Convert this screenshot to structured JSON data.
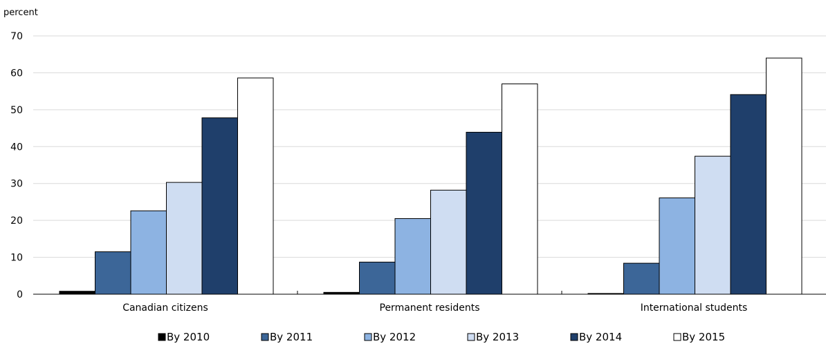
{
  "chart_data": {
    "type": "bar",
    "title": "",
    "xlabel": "",
    "ylabel": "percent",
    "ylim": [
      0,
      70
    ],
    "yticks": [
      0,
      10,
      20,
      30,
      40,
      50,
      60,
      70
    ],
    "grid": true,
    "legend_position": "bottom",
    "categories": [
      "Canadian citizens",
      "Permanent residents",
      "International students"
    ],
    "series": [
      {
        "name": "By 2010",
        "color": "#000000",
        "values": [
          0.8,
          0.5,
          0.2
        ]
      },
      {
        "name": "By 2011",
        "color": "#3c6698",
        "values": [
          11.5,
          8.7,
          8.4
        ]
      },
      {
        "name": "By 2012",
        "color": "#8db3e2",
        "values": [
          22.6,
          20.5,
          26.1
        ]
      },
      {
        "name": "By 2013",
        "color": "#cfddf2",
        "values": [
          30.3,
          28.2,
          37.4
        ]
      },
      {
        "name": "By 2014",
        "color": "#1f3f6b",
        "values": [
          47.8,
          43.9,
          54.1
        ]
      },
      {
        "name": "By 2015",
        "color": "#ffffff",
        "values": [
          58.6,
          57.0,
          64.0
        ]
      }
    ]
  }
}
